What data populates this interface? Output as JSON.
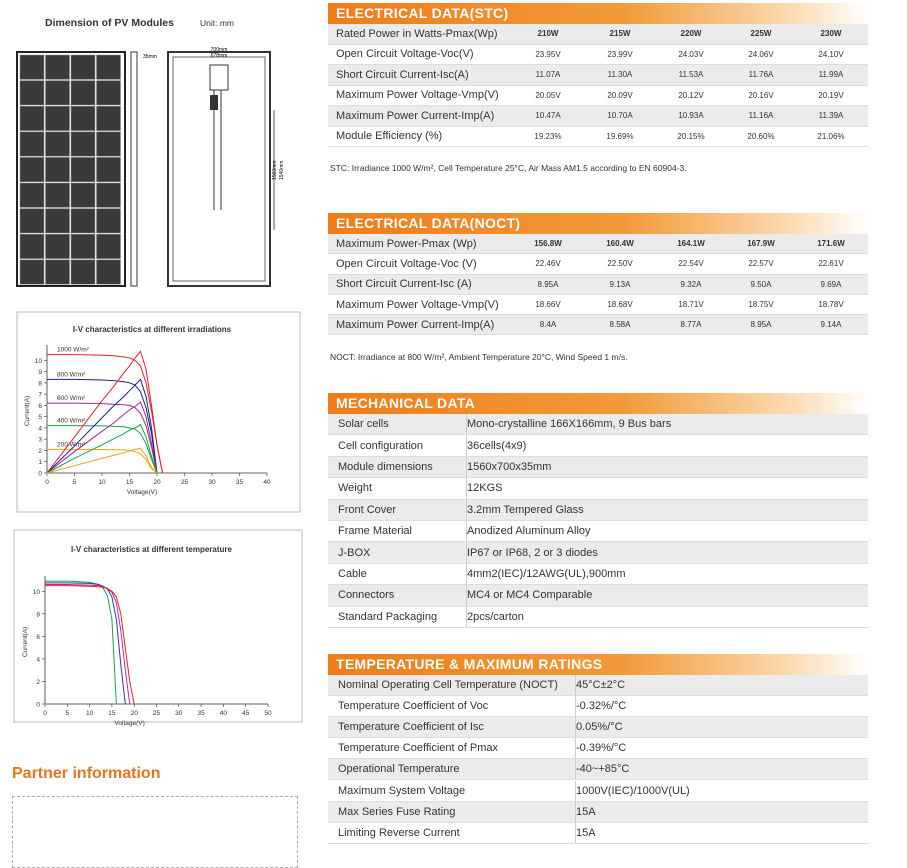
{
  "dimension": {
    "title": "Dimension of PV Modules",
    "unit": "Unit: mm",
    "labels": [
      "35mm",
      "700mm",
      "678mm",
      "1560mm",
      "1540mm"
    ]
  },
  "iv_irradiance": {
    "type": "line",
    "title": "I-V characteristics at different irradiations",
    "x_label": "Voltage(V)",
    "y_label": "Current(A)",
    "xlim": [
      0,
      40
    ],
    "xticks": [
      0,
      5,
      10,
      15,
      20,
      25,
      30,
      35,
      40
    ],
    "ylim": [
      0,
      11
    ],
    "yticks": [
      0,
      1,
      2,
      3,
      4,
      5,
      6,
      7,
      8,
      9,
      10
    ],
    "x": [
      0,
      5,
      10,
      12,
      14,
      15,
      16,
      17,
      18,
      19,
      20,
      21,
      22
    ],
    "annotations": [
      "1000 W/m²",
      "800 W/m²",
      "600 W/m²",
      "400 W/m²",
      "200 W/m²"
    ],
    "series": [
      {
        "color": "#e52028",
        "values": [
          10.5,
          10.5,
          10.45,
          10.4,
          10.3,
          10.2,
          10.0,
          9.5,
          8,
          5.5,
          2.5,
          0,
          null
        ]
      },
      {
        "color": "#1b1f8a",
        "values": [
          8.3,
          8.3,
          8.25,
          8.2,
          8.1,
          8.0,
          7.8,
          7.2,
          5.8,
          3.5,
          0,
          null,
          null
        ]
      },
      {
        "color": "#9b2a8e",
        "values": [
          6.2,
          6.2,
          6.15,
          6.1,
          6.05,
          6.0,
          5.8,
          5.3,
          4.2,
          2.3,
          0,
          null,
          null
        ]
      },
      {
        "color": "#1aa34a",
        "values": [
          4.2,
          4.2,
          4.18,
          4.15,
          4.1,
          4.0,
          3.9,
          3.5,
          2.6,
          1.2,
          0,
          null,
          null
        ]
      },
      {
        "color": "#f0a21b",
        "values": [
          2.1,
          2.1,
          2.08,
          2.07,
          2.05,
          2.0,
          1.9,
          1.7,
          1.2,
          0.4,
          0,
          null,
          null
        ]
      },
      {
        "color": "#e52028",
        "values": [
          0,
          3.2,
          6.4,
          7.6,
          8.9,
          9.5,
          10.2,
          10.8,
          9.2,
          6.0,
          2.5,
          0,
          null
        ]
      },
      {
        "color": "#1b1f8a",
        "values": [
          0,
          2.4,
          4.9,
          5.9,
          6.8,
          7.3,
          7.8,
          8.3,
          6.8,
          4,
          0,
          null,
          null
        ]
      },
      {
        "color": "#9b2a8e",
        "values": [
          0,
          1.9,
          3.7,
          4.4,
          5.2,
          5.6,
          5.9,
          6.3,
          5,
          2.6,
          0,
          null,
          null
        ]
      },
      {
        "color": "#1aa34a",
        "values": [
          0,
          1.3,
          2.5,
          3.0,
          3.5,
          3.8,
          4.0,
          4.3,
          3.2,
          1.5,
          0,
          null,
          null
        ]
      },
      {
        "color": "#f0a21b",
        "values": [
          0,
          0.65,
          1.3,
          1.55,
          1.8,
          1.95,
          2.1,
          2.2,
          1.5,
          0.5,
          0,
          null,
          null
        ]
      }
    ]
  },
  "iv_temperature": {
    "type": "line",
    "title": "I-V characteristics at different temperature",
    "x_label": "Voltage(V)",
    "y_label": "Current(A)",
    "xlim": [
      0,
      50
    ],
    "xticks": [
      0,
      5,
      10,
      15,
      20,
      25,
      30,
      35,
      40,
      45,
      50
    ],
    "ylim": [
      0,
      11
    ],
    "yticks": [
      0,
      2,
      4,
      6,
      8,
      10
    ],
    "x": [
      0,
      5,
      10,
      12,
      13,
      14,
      15,
      16,
      17,
      18,
      19,
      20,
      21
    ],
    "series": [
      {
        "color": "#1aa34a",
        "values": [
          10.9,
          10.9,
          10.8,
          10.6,
          10.3,
          9.6,
          7.5,
          0,
          null,
          null,
          null,
          null,
          null
        ]
      },
      {
        "color": "#2a3aa8",
        "values": [
          10.75,
          10.75,
          10.7,
          10.6,
          10.45,
          10.2,
          9.5,
          7.5,
          3.5,
          0,
          null,
          null,
          null
        ]
      },
      {
        "color": "#c42a9a",
        "values": [
          10.6,
          10.6,
          10.55,
          10.5,
          10.4,
          10.25,
          9.9,
          9,
          6.5,
          3,
          0,
          null,
          null
        ]
      },
      {
        "color": "#e52028",
        "values": [
          10.5,
          10.5,
          10.45,
          10.4,
          10.35,
          10.25,
          10.0,
          9.5,
          8,
          5,
          2,
          0,
          null
        ]
      }
    ]
  },
  "stc": {
    "title": "ELECTRICAL DATA(STC)",
    "rows": [
      [
        "Rated Power in Watts-Pmax(Wp)",
        "210W",
        "215W",
        "220W",
        "225W",
        "230W"
      ],
      [
        "Open Circuit Voltage-Voc(V)",
        "23.95V",
        "23.99V",
        "24.03V",
        "24.06V",
        "24.10V"
      ],
      [
        "Short Circuit Current-Isc(A)",
        "11.07A",
        "11.30A",
        "11.53A",
        "11.76A",
        "11.99A"
      ],
      [
        "Maximum Power Voltage-Vmp(V)",
        "20.05V",
        "20.09V",
        "20.12V",
        "20.16V",
        "20.19V"
      ],
      [
        "Maximum Power Current-Imp(A)",
        "10.47A",
        "10.70A",
        "10.93A",
        "11.16A",
        "11.39A"
      ],
      [
        "Module Efficiency (%)",
        "19.23%",
        "19.69%",
        "20.15%",
        "20.60%",
        "21.06%"
      ]
    ],
    "note": "STC: Irradiance 1000 W/m², Cell Temperature 25°C, Air Mass AM1.5 according to EN 60904-3."
  },
  "noct": {
    "title": "ELECTRICAL DATA(NOCT)",
    "rows": [
      [
        "Maximum Power-Pmax (Wp)",
        "156.8W",
        "160.4W",
        "164.1W",
        "167.9W",
        "171.6W"
      ],
      [
        "Open Circuit Voltage-Voc (V)",
        "22.46V",
        "22.50V",
        "22.54V",
        "22.57V",
        "22.61V"
      ],
      [
        "Short Circuit Current-Isc (A)",
        "8.95A",
        "9.13A",
        "9.32A",
        "9.50A",
        "9.69A"
      ],
      [
        "Maximum Power Voltage-Vmp(V)",
        "18.66V",
        "18.68V",
        "18.71V",
        "18.75V",
        "18.78V"
      ],
      [
        "Maximum Power Current-Imp(A)",
        "8.4A",
        "8.58A",
        "8.77A",
        "8.95A",
        "9.14A"
      ]
    ],
    "note": "NOCT: Irradiance at 800 W/m², Ambient Temperature 20°C, Wind Speed 1 m/s."
  },
  "mechanical": {
    "title": "MECHANICAL DATA",
    "rows": [
      [
        "Solar cells",
        "Mono-crystalline 166X166mm, 9 Bus bars"
      ],
      [
        "Cell configuration",
        "36cells(4x9)"
      ],
      [
        "Module dimensions",
        "1560x700x35mm"
      ],
      [
        "Weight",
        "12KGS"
      ],
      [
        "Front Cover",
        "3.2mm Tempered Glass"
      ],
      [
        "Frame Material",
        "Anodized Aluminum Alloy"
      ],
      [
        "J-BOX",
        "IP67 or IP68,  2 or 3 diodes"
      ],
      [
        "Cable",
        "4mm2(IEC)/12AWG(UL),900mm"
      ],
      [
        "Connectors",
        "MC4 or MC4 Comparable"
      ],
      [
        "Standard Packaging",
        "2pcs/carton"
      ]
    ]
  },
  "temperature": {
    "title": "TEMPERATURE & MAXIMUM RATINGS",
    "rows": [
      [
        "Nominal Operating Cell Temperature (NOCT)",
        "45°C±2°C"
      ],
      [
        "Temperature Coefficient of Voc",
        "-0.32%/°C"
      ],
      [
        "Temperature Coefficient of Isc",
        "0.05%/°C"
      ],
      [
        "Temperature Coefficient of Pmax",
        "-0.39%/°C"
      ],
      [
        "Operational Temperature",
        "-40~+85°C"
      ],
      [
        "Maximum System Voltage",
        "1000V(IEC)/1000V(UL)"
      ],
      [
        "Max Series Fuse Rating",
        "15A"
      ],
      [
        "Limiting Reverse Current",
        "15A"
      ]
    ]
  },
  "partner": {
    "title": "Partner information"
  }
}
